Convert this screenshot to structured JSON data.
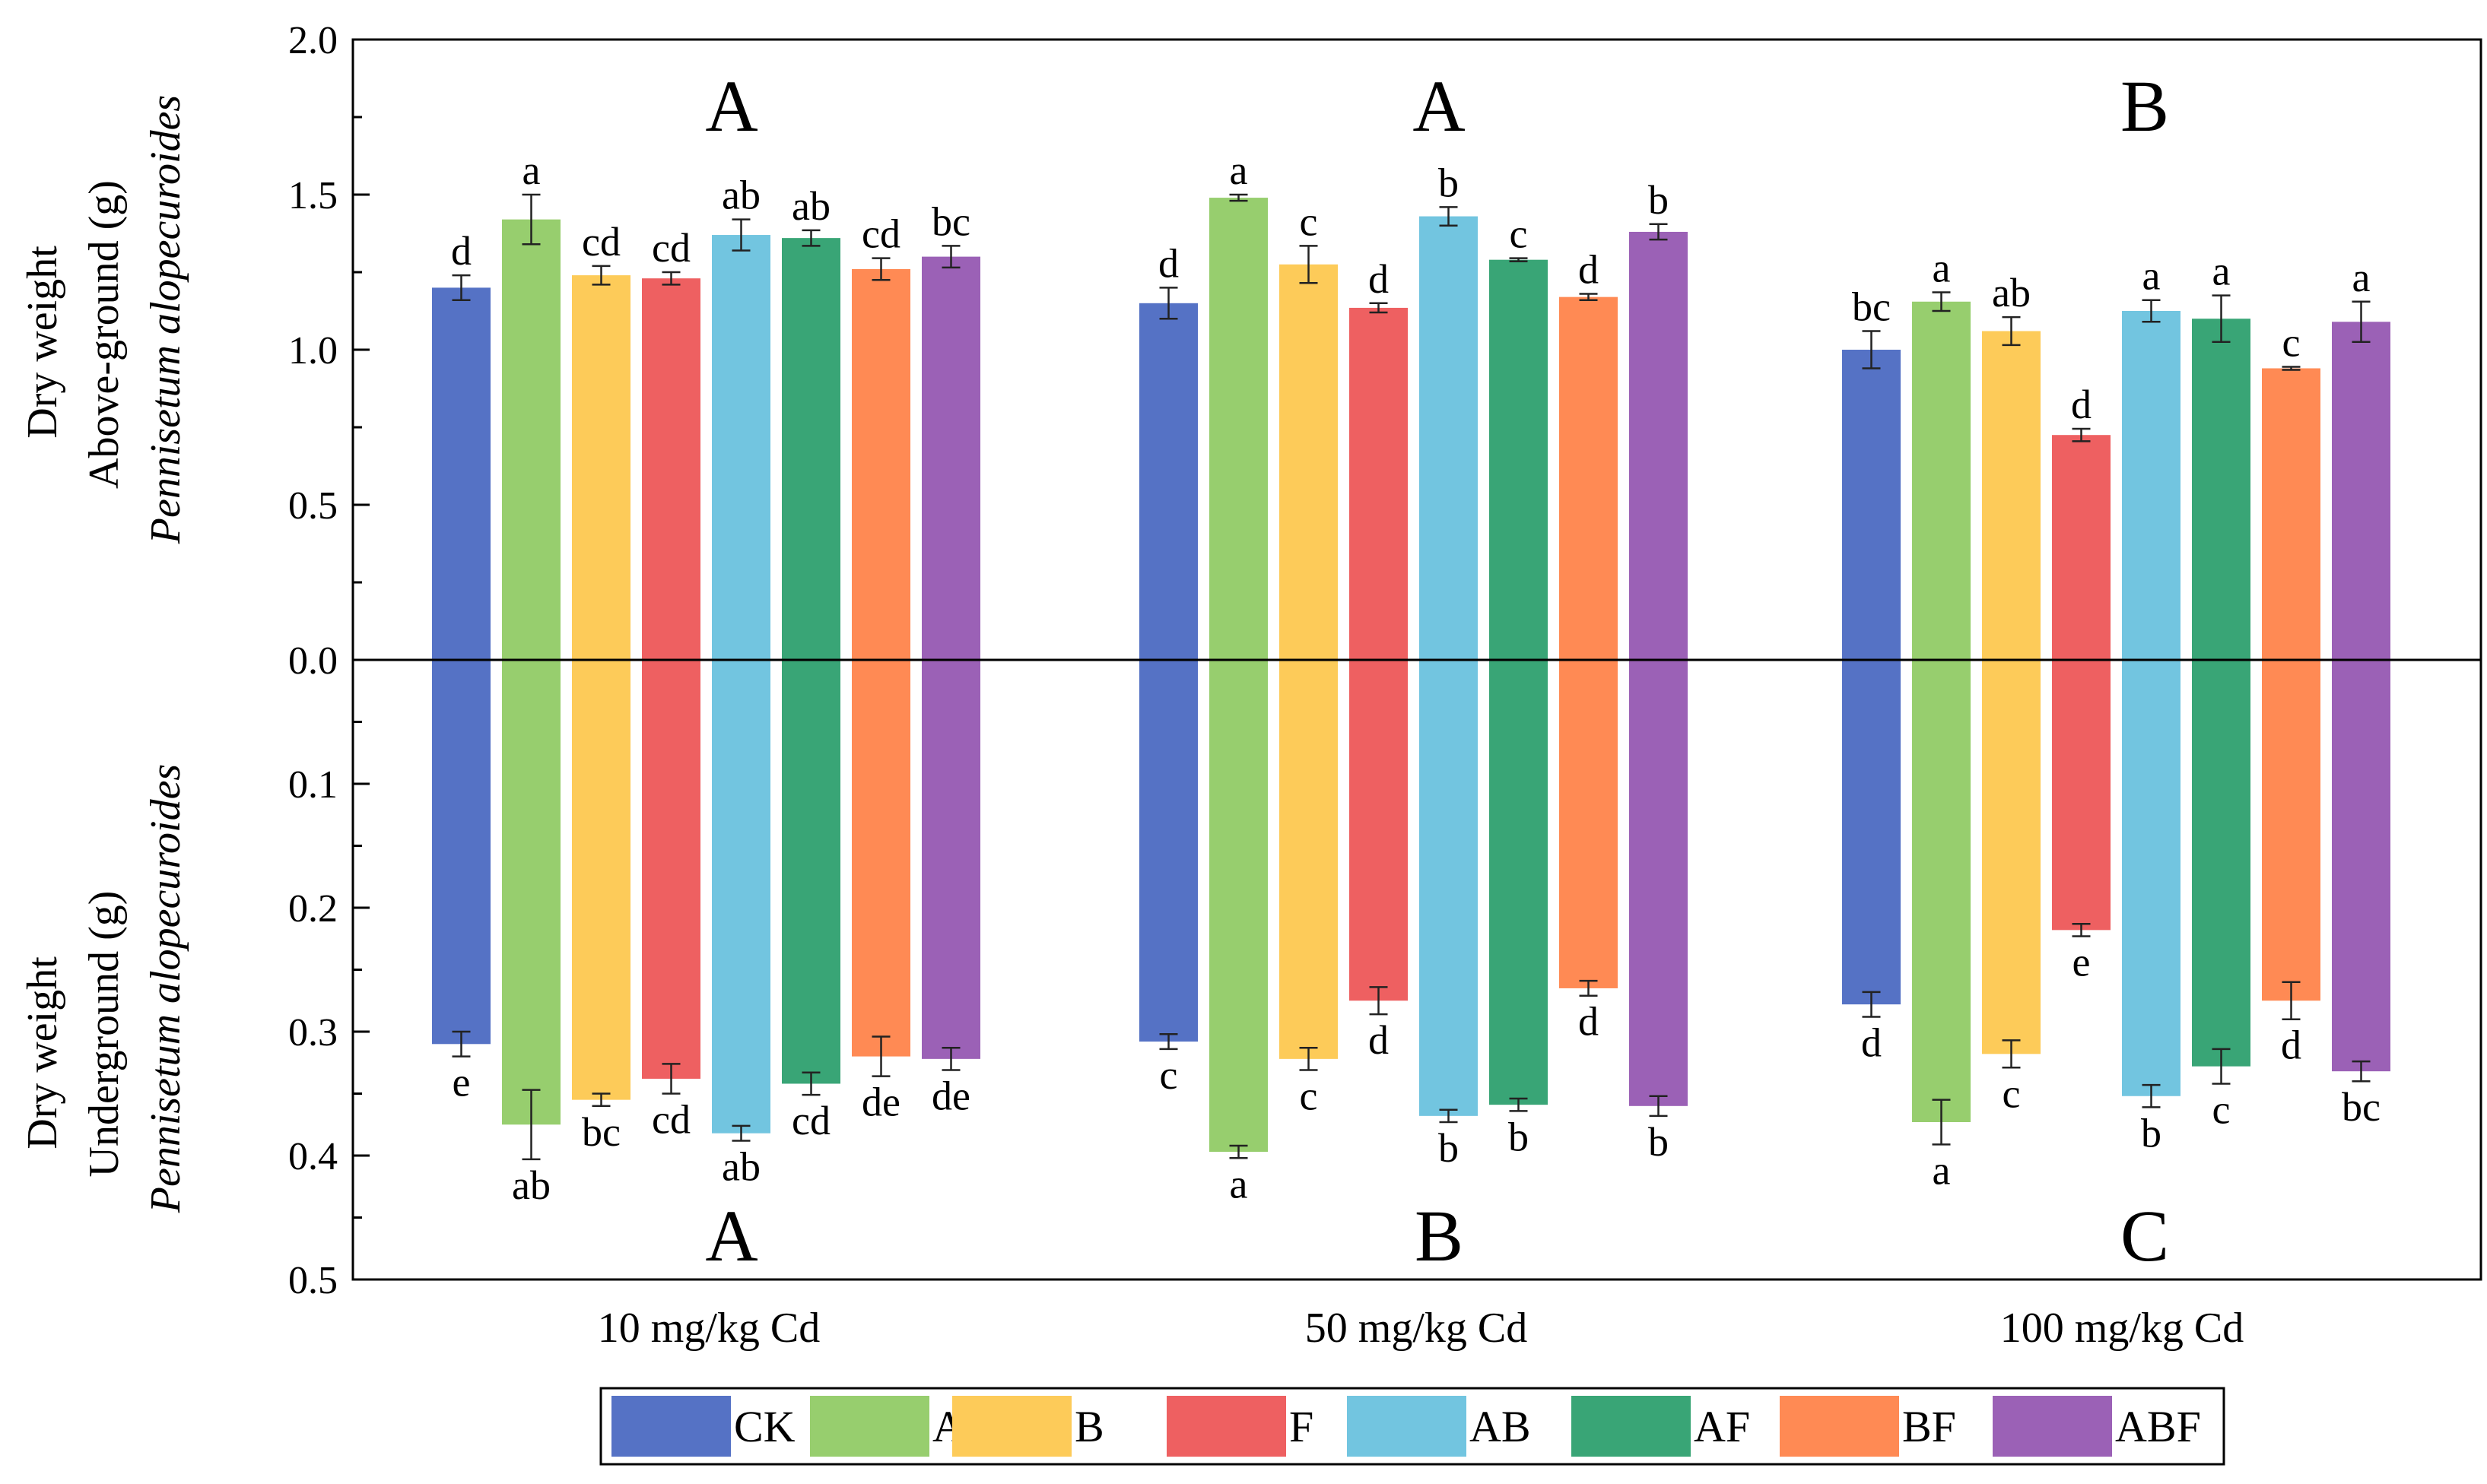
{
  "chart_data": {
    "type": "bar",
    "orientation": "mirrored-vertical",
    "groups": [
      "10 mg/kg Cd",
      "50 mg/kg Cd",
      "100 mg/kg Cd"
    ],
    "series": [
      {
        "name": "CK",
        "color": "#5572C5",
        "above": [
          1.2,
          1.15,
          1.0
        ],
        "above_err": [
          0.04,
          0.05,
          0.06
        ],
        "below": [
          0.31,
          0.308,
          0.278
        ],
        "below_err": [
          0.01,
          0.006,
          0.01
        ],
        "above_letters": [
          "d",
          "d",
          "bc"
        ],
        "below_letters": [
          "e",
          "c",
          "d"
        ]
      },
      {
        "name": "A",
        "color": "#97CE6E",
        "above": [
          1.42,
          1.49,
          1.155
        ],
        "above_err": [
          0.08,
          0.01,
          0.03
        ],
        "below": [
          0.375,
          0.397,
          0.373
        ],
        "below_err": [
          0.028,
          0.005,
          0.018
        ],
        "above_letters": [
          "a",
          "a",
          "a"
        ],
        "below_letters": [
          "ab",
          "a",
          "a"
        ]
      },
      {
        "name": "B",
        "color": "#FDCB59",
        "above": [
          1.24,
          1.275,
          1.06
        ],
        "above_err": [
          0.03,
          0.06,
          0.045
        ],
        "below": [
          0.355,
          0.322,
          0.318
        ],
        "below_err": [
          0.005,
          0.009,
          0.011
        ],
        "above_letters": [
          "cd",
          "c",
          "ab"
        ],
        "below_letters": [
          "bc",
          "c",
          "c"
        ]
      },
      {
        "name": "F",
        "color": "#EE6061",
        "above": [
          1.23,
          1.135,
          0.725
        ],
        "above_err": [
          0.02,
          0.015,
          0.02
        ],
        "below": [
          0.338,
          0.275,
          0.218
        ],
        "below_err": [
          0.012,
          0.011,
          0.005
        ],
        "above_letters": [
          "cd",
          "d",
          "d"
        ],
        "below_letters": [
          "cd",
          "d",
          "e"
        ]
      },
      {
        "name": "AB",
        "color": "#72C5E0",
        "above": [
          1.37,
          1.43,
          1.125
        ],
        "above_err": [
          0.05,
          0.03,
          0.035
        ],
        "below": [
          0.382,
          0.368,
          0.352
        ],
        "below_err": [
          0.006,
          0.005,
          0.009
        ],
        "above_letters": [
          "ab",
          "b",
          "a"
        ],
        "below_letters": [
          "ab",
          "b",
          "b"
        ]
      },
      {
        "name": "AF",
        "color": "#39A576",
        "above": [
          1.36,
          1.29,
          1.1
        ],
        "above_err": [
          0.025,
          0.005,
          0.075
        ],
        "below": [
          0.342,
          0.359,
          0.328
        ],
        "below_err": [
          0.009,
          0.005,
          0.014
        ],
        "above_letters": [
          "ab",
          "c",
          "a"
        ],
        "below_letters": [
          "cd",
          "b",
          "c"
        ]
      },
      {
        "name": "BF",
        "color": "#FF8A54",
        "above": [
          1.26,
          1.17,
          0.94
        ],
        "above_err": [
          0.035,
          0.01,
          0.005
        ],
        "below": [
          0.32,
          0.265,
          0.275
        ],
        "below_err": [
          0.016,
          0.006,
          0.015
        ],
        "above_letters": [
          "cd",
          "d",
          "c"
        ],
        "below_letters": [
          "de",
          "d",
          "d"
        ]
      },
      {
        "name": "ABF",
        "color": "#9B61B6",
        "above": [
          1.3,
          1.38,
          1.09
        ],
        "above_err": [
          0.035,
          0.025,
          0.065
        ],
        "below": [
          0.322,
          0.36,
          0.332
        ],
        "below_err": [
          0.009,
          0.008,
          0.008
        ],
        "above_letters": [
          "bc",
          "b",
          "a"
        ],
        "below_letters": [
          "de",
          "b",
          "bc"
        ]
      }
    ],
    "above_axis": {
      "line1": "Dry weight",
      "line2": "Above-ground (g)",
      "line3": "Pennisetum alopecuroides",
      "range": [
        0,
        2.0
      ],
      "ticks": [
        "0.0",
        "0.5",
        "1.0",
        "1.5",
        "2.0"
      ]
    },
    "below_axis": {
      "line1": "Dry weight",
      "line2": "Underground (g)",
      "line3": "Pennisetum alopecuroides",
      "range": [
        0,
        0.5
      ],
      "ticks": [
        "0.1",
        "0.2",
        "0.3",
        "0.4",
        "0.5"
      ]
    },
    "above_group_letters": [
      "A",
      "A",
      "B"
    ],
    "below_group_letters": [
      "A",
      "B",
      "C"
    ],
    "legend_position": "bottom-center"
  }
}
